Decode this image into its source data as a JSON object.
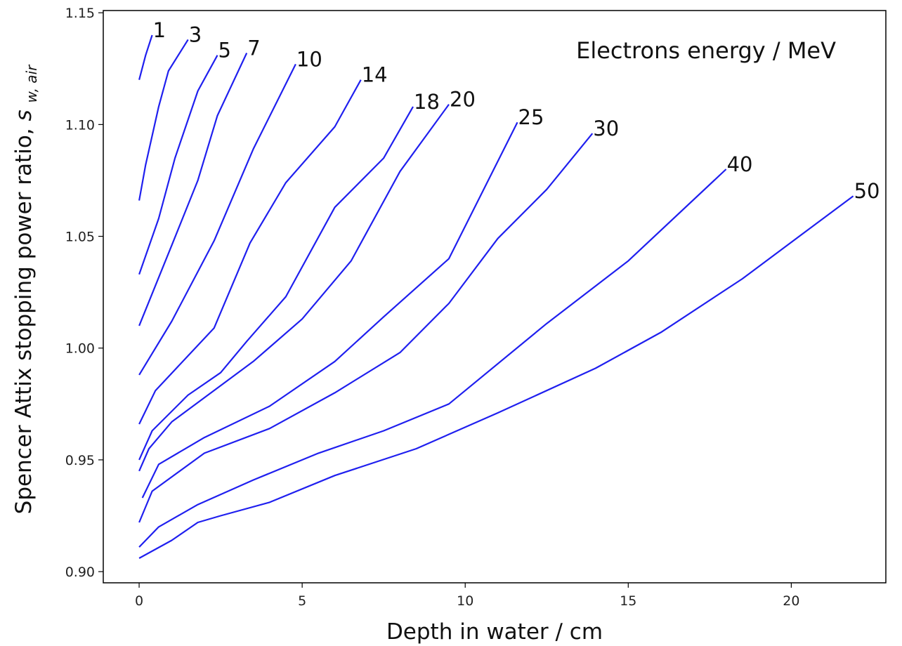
{
  "chart_data": {
    "type": "line",
    "xlabel": "Depth in water / cm",
    "ylabel_main": "Spencer Attix stopping power ratio,",
    "ylabel_symbol": "s",
    "ylabel_subscript": "w, air",
    "annotation": "Electrons energy / MeV",
    "xlim": [
      -1.1,
      22.9
    ],
    "ylim": [
      0.895,
      1.151
    ],
    "x_ticks": [
      0,
      5,
      10,
      15,
      20
    ],
    "x_tick_labels": [
      "0",
      "5",
      "10",
      "15",
      "20"
    ],
    "y_ticks": [
      0.9,
      0.95,
      1.0,
      1.05,
      1.1,
      1.15
    ],
    "y_tick_labels": [
      "0.90",
      "0.95",
      "1.00",
      "1.05",
      "1.10",
      "1.15"
    ],
    "line_color": "#1f1fef",
    "series": [
      {
        "name": "1",
        "x": [
          0,
          0.2,
          0.4
        ],
        "y": [
          1.12,
          1.131,
          1.14
        ]
      },
      {
        "name": "3",
        "x": [
          0,
          0.2,
          0.6,
          0.9,
          1.5
        ],
        "y": [
          1.066,
          1.082,
          1.108,
          1.124,
          1.138
        ]
      },
      {
        "name": "5",
        "x": [
          0,
          0.6,
          1.1,
          1.8,
          2.4
        ],
        "y": [
          1.033,
          1.058,
          1.085,
          1.115,
          1.131
        ]
      },
      {
        "name": "7",
        "x": [
          0,
          1.0,
          1.8,
          2.4,
          3.3
        ],
        "y": [
          1.01,
          1.046,
          1.075,
          1.104,
          1.132
        ]
      },
      {
        "name": "10",
        "x": [
          0,
          1.0,
          2.3,
          3.5,
          4.8
        ],
        "y": [
          0.988,
          1.012,
          1.048,
          1.089,
          1.127
        ]
      },
      {
        "name": "14",
        "x": [
          0,
          0.5,
          2.3,
          3.4,
          4.5,
          6.0,
          6.8
        ],
        "y": [
          0.966,
          0.981,
          1.009,
          1.047,
          1.074,
          1.099,
          1.12
        ]
      },
      {
        "name": "18",
        "x": [
          0,
          0.4,
          1.5,
          2.5,
          3.3,
          4.5,
          6.0,
          7.5,
          8.4
        ],
        "y": [
          0.95,
          0.963,
          0.979,
          0.989,
          1.003,
          1.023,
          1.063,
          1.085,
          1.108
        ]
      },
      {
        "name": "20",
        "x": [
          0,
          0.3,
          1.0,
          3.5,
          5.0,
          6.5,
          8.0,
          9.5
        ],
        "y": [
          0.945,
          0.955,
          0.967,
          0.994,
          1.013,
          1.039,
          1.079,
          1.109
        ]
      },
      {
        "name": "25",
        "x": [
          0.1,
          0.6,
          2.0,
          4.0,
          6.0,
          7.5,
          9.5,
          11.6
        ],
        "y": [
          0.933,
          0.948,
          0.96,
          0.974,
          0.994,
          1.014,
          1.04,
          1.101
        ]
      },
      {
        "name": "30",
        "x": [
          0,
          0.4,
          2.0,
          4.0,
          6.0,
          8.0,
          9.5,
          11.0,
          12.5,
          13.9
        ],
        "y": [
          0.922,
          0.936,
          0.953,
          0.964,
          0.98,
          0.998,
          1.02,
          1.049,
          1.071,
          1.096
        ]
      },
      {
        "name": "40",
        "x": [
          0,
          0.6,
          1.8,
          3.5,
          5.5,
          7.5,
          9.5,
          12.5,
          15.0,
          18.0
        ],
        "y": [
          0.911,
          0.92,
          0.93,
          0.941,
          0.953,
          0.963,
          0.975,
          1.011,
          1.039,
          1.08
        ]
      },
      {
        "name": "50",
        "x": [
          0,
          1.0,
          1.8,
          2.5,
          4.0,
          6.0,
          8.5,
          11.0,
          14.0,
          16.0,
          18.5,
          21.9
        ],
        "y": [
          0.906,
          0.914,
          0.922,
          0.925,
          0.931,
          0.943,
          0.955,
          0.971,
          0.991,
          1.007,
          1.031,
          1.068
        ]
      }
    ]
  }
}
